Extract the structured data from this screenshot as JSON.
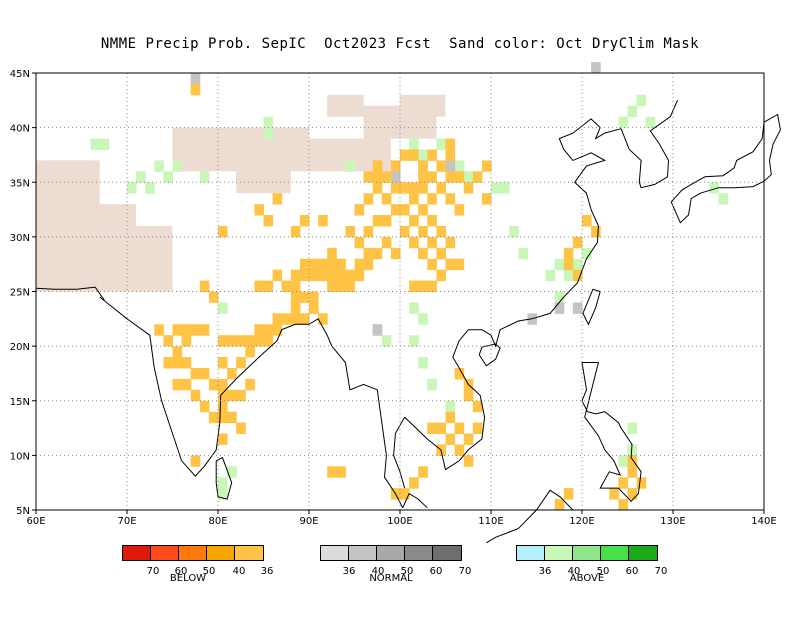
{
  "title": "NMME Precip Prob. SepIC  Oct2023 Fcst  Sand color: Oct DryClim Mask",
  "axes": {
    "lon_labels": [
      "60E",
      "70E",
      "80E",
      "90E",
      "100E",
      "110E",
      "120E",
      "130E",
      "140E"
    ],
    "lat_labels": [
      "45N",
      "40N",
      "35N",
      "30N",
      "25N",
      "20N",
      "15N",
      "10N",
      "5N"
    ],
    "lon_range": [
      60,
      140
    ],
    "lat_range": [
      5,
      45
    ],
    "grid": "dotted"
  },
  "colors": {
    "sand": "#ecdcd2",
    "below": [
      "#e01a0a",
      "#ff4a1a",
      "#ff7a0a",
      "#f7a600",
      "#ffc446"
    ],
    "normal": [
      "#dcdcdc",
      "#c4c4c4",
      "#a8a8a8",
      "#8a8a8a",
      "#6e6e6e"
    ],
    "above": [
      "#b4f0fa",
      "#c8f7b8",
      "#8ee88a",
      "#48e048",
      "#1aaa1a"
    ]
  },
  "legend": {
    "below": {
      "title": "BELOW",
      "ticks": [
        "70",
        "60",
        "50",
        "40",
        "36"
      ]
    },
    "normal": {
      "title": "NORMAL",
      "ticks": [
        "36",
        "40",
        "50",
        "60",
        "70"
      ]
    },
    "above": {
      "title": "ABOVE",
      "ticks": [
        "36",
        "40",
        "50",
        "60",
        "70"
      ]
    }
  },
  "map_data": {
    "type": "gridded-probability",
    "resolution_deg": 1,
    "sand_regions": [
      [
        60,
        25,
        7,
        12
      ],
      [
        61,
        35,
        5,
        2
      ],
      [
        67,
        25,
        8,
        6
      ],
      [
        65,
        31,
        6,
        2
      ],
      [
        75,
        36,
        15,
        4
      ],
      [
        82,
        34,
        6,
        4
      ],
      [
        89,
        36,
        10,
        3
      ],
      [
        96,
        39,
        8,
        3
      ],
      [
        92,
        41,
        4,
        2
      ],
      [
        100,
        41,
        5,
        2
      ]
    ],
    "above_cells": [
      [
        66,
        38
      ],
      [
        67,
        38
      ],
      [
        70,
        34
      ],
      [
        71,
        35
      ],
      [
        72,
        34
      ],
      [
        73,
        36
      ],
      [
        74,
        35
      ],
      [
        75,
        36
      ],
      [
        78,
        35
      ],
      [
        85,
        40
      ],
      [
        85,
        39
      ],
      [
        94,
        36
      ],
      [
        101,
        38
      ],
      [
        102,
        37
      ],
      [
        104,
        38
      ],
      [
        105,
        36
      ],
      [
        106,
        36
      ],
      [
        107,
        35
      ],
      [
        108,
        35
      ],
      [
        110,
        34
      ],
      [
        111,
        34
      ],
      [
        112,
        30
      ],
      [
        113,
        28
      ],
      [
        116,
        26
      ],
      [
        117,
        27
      ],
      [
        118,
        26
      ],
      [
        119,
        27
      ],
      [
        120,
        28
      ],
      [
        117,
        24
      ],
      [
        124,
        40
      ],
      [
        125,
        41
      ],
      [
        126,
        42
      ],
      [
        127,
        40
      ],
      [
        134,
        34
      ],
      [
        135,
        33
      ],
      [
        97,
        21
      ],
      [
        98,
        20
      ],
      [
        101,
        23
      ],
      [
        102,
        22
      ],
      [
        101,
        20
      ],
      [
        102,
        18
      ],
      [
        103,
        16
      ],
      [
        105,
        14
      ],
      [
        80,
        23
      ],
      [
        76,
        21
      ],
      [
        125,
        12
      ],
      [
        125,
        10
      ],
      [
        124,
        9
      ],
      [
        80,
        7
      ],
      [
        81,
        8
      ],
      [
        80,
        6
      ]
    ],
    "normal_cells": [
      [
        77,
        44
      ],
      [
        98,
        35
      ],
      [
        99,
        35
      ],
      [
        102,
        36
      ],
      [
        105,
        36
      ],
      [
        114,
        22
      ],
      [
        117,
        23
      ],
      [
        119,
        23
      ],
      [
        121,
        45
      ],
      [
        97,
        21
      ]
    ],
    "below_cells": [
      [
        77,
        43
      ],
      [
        80,
        30
      ],
      [
        78,
        25
      ],
      [
        79,
        24
      ],
      [
        84,
        25
      ],
      [
        85,
        25
      ],
      [
        86,
        26
      ],
      [
        87,
        25
      ],
      [
        88,
        25
      ],
      [
        89,
        26
      ],
      [
        90,
        26
      ],
      [
        88,
        24
      ],
      [
        86,
        22
      ],
      [
        87,
        22
      ],
      [
        88,
        22
      ],
      [
        85,
        21
      ],
      [
        86,
        21
      ],
      [
        84,
        21
      ],
      [
        83,
        20
      ],
      [
        82,
        20
      ],
      [
        81,
        20
      ],
      [
        80,
        20
      ],
      [
        73,
        21
      ],
      [
        74,
        20
      ],
      [
        75,
        21
      ],
      [
        76,
        21
      ],
      [
        77,
        21
      ],
      [
        78,
        21
      ],
      [
        76,
        20
      ],
      [
        75,
        19
      ],
      [
        74,
        18
      ],
      [
        75,
        18
      ],
      [
        76,
        18
      ],
      [
        77,
        17
      ],
      [
        78,
        17
      ],
      [
        79,
        16
      ],
      [
        80,
        16
      ],
      [
        76,
        16
      ],
      [
        77,
        15
      ],
      [
        75,
        16
      ],
      [
        78,
        14
      ],
      [
        80,
        13
      ],
      [
        81,
        13
      ],
      [
        82,
        12
      ],
      [
        80,
        11
      ],
      [
        77,
        9
      ],
      [
        92,
        27
      ],
      [
        93,
        27
      ],
      [
        92,
        28
      ],
      [
        94,
        30
      ],
      [
        95,
        32
      ],
      [
        96,
        33
      ],
      [
        97,
        34
      ],
      [
        98,
        33
      ],
      [
        99,
        34
      ],
      [
        100,
        34
      ],
      [
        101,
        33
      ],
      [
        102,
        32
      ],
      [
        103,
        31
      ],
      [
        104,
        30
      ],
      [
        100,
        30
      ],
      [
        101,
        29
      ],
      [
        102,
        28
      ],
      [
        103,
        27
      ],
      [
        98,
        29
      ],
      [
        99,
        28
      ],
      [
        97,
        28
      ],
      [
        96,
        27
      ],
      [
        95,
        26
      ],
      [
        94,
        25
      ],
      [
        95,
        29
      ],
      [
        96,
        30
      ],
      [
        97,
        31
      ],
      [
        98,
        31
      ],
      [
        99,
        32
      ],
      [
        100,
        32
      ],
      [
        101,
        31
      ],
      [
        102,
        30
      ],
      [
        103,
        29
      ],
      [
        104,
        28
      ],
      [
        105,
        27
      ],
      [
        106,
        27
      ],
      [
        105,
        29
      ],
      [
        104,
        26
      ],
      [
        103,
        25
      ],
      [
        102,
        25
      ],
      [
        101,
        25
      ],
      [
        105,
        38
      ],
      [
        105,
        37
      ],
      [
        104,
        36
      ],
      [
        103,
        35
      ],
      [
        102,
        35
      ],
      [
        101,
        34
      ],
      [
        105,
        35
      ],
      [
        106,
        35
      ],
      [
        107,
        34
      ],
      [
        108,
        35
      ],
      [
        109,
        36
      ],
      [
        109,
        33
      ],
      [
        106,
        32
      ],
      [
        105,
        33
      ],
      [
        92,
        25
      ],
      [
        93,
        25
      ],
      [
        91,
        26
      ],
      [
        89,
        24
      ],
      [
        90,
        24
      ],
      [
        88,
        23
      ],
      [
        89,
        22
      ],
      [
        90,
        23
      ],
      [
        91,
        22
      ],
      [
        91,
        31
      ],
      [
        89,
        31
      ],
      [
        86,
        33
      ],
      [
        84,
        32
      ],
      [
        85,
        31
      ],
      [
        88,
        30
      ],
      [
        96,
        35
      ],
      [
        97,
        35
      ],
      [
        98,
        35
      ],
      [
        97,
        36
      ],
      [
        99,
        36
      ],
      [
        100,
        37
      ],
      [
        101,
        37
      ],
      [
        102,
        36
      ],
      [
        103,
        37
      ],
      [
        104,
        34
      ],
      [
        103,
        33
      ],
      [
        102,
        34
      ],
      [
        106,
        17
      ],
      [
        107,
        16
      ],
      [
        107,
        15
      ],
      [
        108,
        14
      ],
      [
        106,
        12
      ],
      [
        107,
        11
      ],
      [
        108,
        12
      ],
      [
        105,
        11
      ],
      [
        104,
        10
      ],
      [
        106,
        10
      ],
      [
        107,
        9
      ],
      [
        104,
        12
      ],
      [
        105,
        13
      ],
      [
        103,
        12
      ],
      [
        102,
        8
      ],
      [
        101,
        7
      ],
      [
        100,
        6
      ],
      [
        99,
        6
      ],
      [
        93,
        8
      ],
      [
        92,
        8
      ],
      [
        117,
        5
      ],
      [
        118,
        6
      ],
      [
        124,
        7
      ],
      [
        125,
        8
      ],
      [
        125,
        6
      ],
      [
        124,
        5
      ],
      [
        123,
        6
      ],
      [
        126,
        7
      ],
      [
        125,
        9
      ],
      [
        120,
        31
      ],
      [
        121,
        30
      ],
      [
        119,
        29
      ],
      [
        119,
        26
      ],
      [
        118,
        27
      ],
      [
        118,
        28
      ],
      [
        85,
        20
      ],
      [
        84,
        20
      ],
      [
        83,
        19
      ],
      [
        82,
        18
      ],
      [
        81,
        17
      ],
      [
        80,
        18
      ],
      [
        80,
        15
      ],
      [
        80,
        14
      ],
      [
        79,
        13
      ],
      [
        81,
        15
      ],
      [
        82,
        15
      ],
      [
        83,
        16
      ],
      [
        87,
        25
      ],
      [
        88,
        26
      ],
      [
        89,
        27
      ],
      [
        90,
        27
      ],
      [
        91,
        27
      ],
      [
        92,
        26
      ],
      [
        93,
        26
      ],
      [
        94,
        26
      ],
      [
        95,
        27
      ],
      [
        96,
        28
      ]
    ]
  }
}
